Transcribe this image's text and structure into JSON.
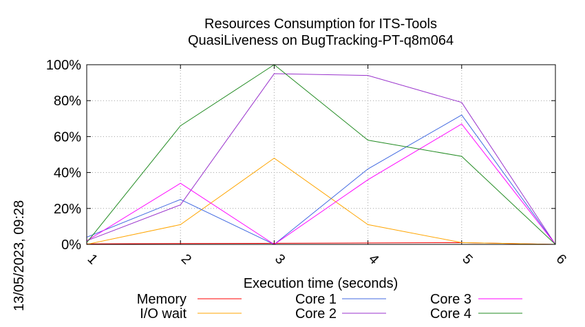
{
  "chart_data": {
    "type": "line",
    "title": "Resources Consumption for ITS-Tools",
    "subtitle": "QuasiLiveness on BugTracking-PT-q8m064",
    "xlabel": "Execution time (seconds)",
    "ylabel": "",
    "timestamp": "13/05/2023, 09:28",
    "x": [
      1,
      2,
      3,
      4,
      5,
      6
    ],
    "xlim": [
      1,
      6
    ],
    "ylim": [
      0,
      100
    ],
    "x_ticks": [
      "1",
      "2",
      "3",
      "4",
      "5",
      "6"
    ],
    "y_ticks": [
      "0%",
      "20%",
      "40%",
      "60%",
      "80%",
      "100%"
    ],
    "y_tick_values": [
      0,
      20,
      40,
      60,
      80,
      100
    ],
    "grid": true,
    "legend_position": "bottom",
    "series": [
      {
        "name": "Memory",
        "color": "#ff0000",
        "values": [
          0.3,
          0.5,
          0.6,
          0.8,
          1.0,
          0
        ]
      },
      {
        "name": "I/O wait",
        "color": "#ffa500",
        "values": [
          0,
          11,
          48,
          11,
          1,
          0
        ]
      },
      {
        "name": "Core 1",
        "color": "#4169e1",
        "values": [
          4,
          25,
          0,
          42,
          72,
          0
        ]
      },
      {
        "name": "Core 2",
        "color": "#9932cc",
        "values": [
          2,
          22,
          95,
          94,
          79,
          0
        ]
      },
      {
        "name": "Core 3",
        "color": "#ff00ff",
        "values": [
          2,
          34,
          0,
          36,
          67,
          0
        ]
      },
      {
        "name": "Core 4",
        "color": "#228b22",
        "values": [
          1,
          66,
          100,
          58,
          49,
          0
        ]
      }
    ]
  }
}
